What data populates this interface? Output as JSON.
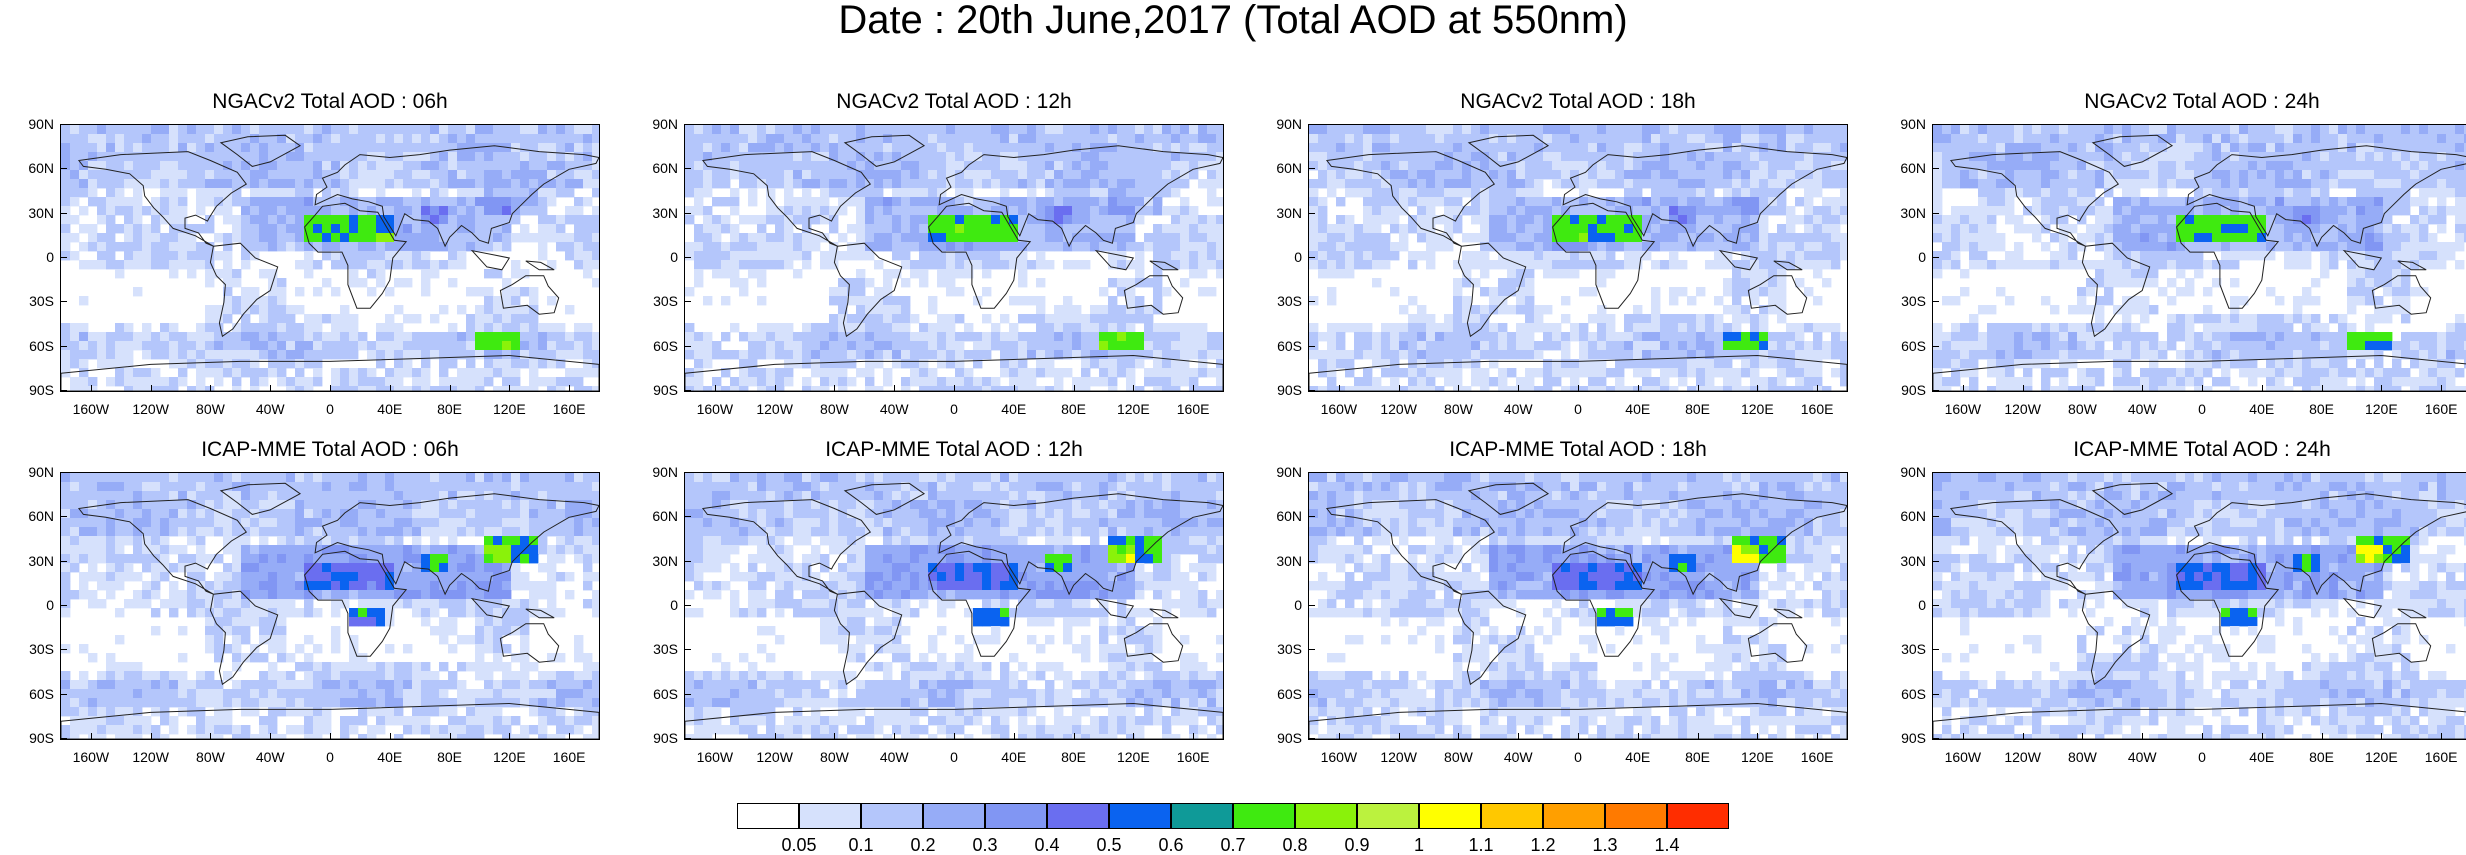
{
  "page": {
    "title": "Date : 20th June,2017 (Total AOD at 550nm)"
  },
  "axes": {
    "lat_ticks": [
      "90N",
      "60N",
      "30N",
      "0",
      "30S",
      "60S",
      "90S"
    ],
    "lon_ticks": [
      "160W",
      "120W",
      "80W",
      "40W",
      "0",
      "40E",
      "80E",
      "120E",
      "160E"
    ]
  },
  "panels": [
    {
      "title": "NGACv2 Total AOD : 06h"
    },
    {
      "title": "NGACv2 Total AOD : 12h"
    },
    {
      "title": "NGACv2 Total AOD : 18h"
    },
    {
      "title": "NGACv2 Total AOD : 24h"
    },
    {
      "title": "ICAP-MME Total AOD : 06h"
    },
    {
      "title": "ICAP-MME Total AOD : 12h"
    },
    {
      "title": "ICAP-MME Total AOD : 18h"
    },
    {
      "title": "ICAP-MME Total AOD : 24h"
    }
  ],
  "colorbar": {
    "colors": [
      "#ffffff",
      "#d6e1fc",
      "#b4c6fb",
      "#96acf7",
      "#8196f3",
      "#6a6ef0",
      "#0a63f0",
      "#0f9a98",
      "#3fea10",
      "#8af20a",
      "#bbf23e",
      "#ffff00",
      "#ffc800",
      "#ff9f00",
      "#ff7a00",
      "#ff2d00"
    ],
    "labels": [
      "0.05",
      "0.1",
      "0.2",
      "0.3",
      "0.4",
      "0.5",
      "0.6",
      "0.7",
      "0.8",
      "0.9",
      "1",
      "1.1",
      "1.2",
      "1.3",
      "1.4"
    ]
  }
}
